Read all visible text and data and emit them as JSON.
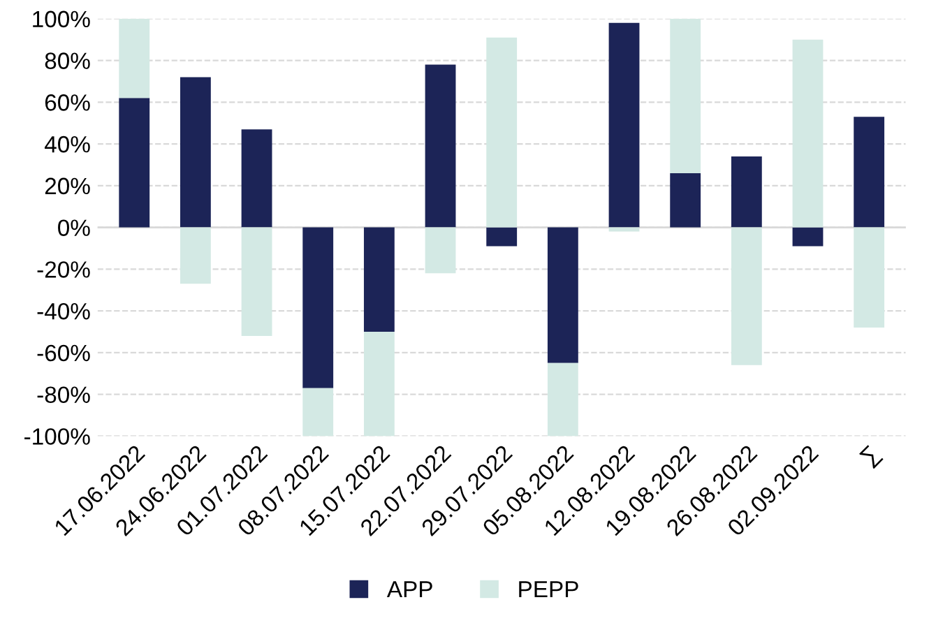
{
  "chart_data": {
    "type": "bar",
    "stacked": true,
    "categories": [
      "17.06.2022",
      "24.06.2022",
      "01.07.2022",
      "08.07.2022",
      "15.07.2022",
      "22.07.2022",
      "29.07.2022",
      "05.08.2022",
      "12.08.2022",
      "19.08.2022",
      "26.08.2022",
      "02.09.2022",
      "∑"
    ],
    "series": [
      {
        "name": "APP",
        "color": "#1c2457",
        "values": [
          62,
          72,
          47,
          -77,
          -50,
          78,
          -9,
          -65,
          98,
          26,
          34,
          -9,
          53
        ]
      },
      {
        "name": "PEPP",
        "color": "#d3e9e4",
        "values": [
          38,
          -27,
          -52,
          -23,
          -50,
          -22,
          91,
          -35,
          -2,
          74,
          -66,
          90,
          -48
        ]
      }
    ],
    "ylim": [
      -100,
      100
    ],
    "yticks": [
      {
        "value": -100,
        "label": "-100%"
      },
      {
        "value": -80,
        "label": "-80%"
      },
      {
        "value": -60,
        "label": "-60%"
      },
      {
        "value": -40,
        "label": "-40%"
      },
      {
        "value": -20,
        "label": "-20%"
      },
      {
        "value": 0,
        "label": "0%"
      },
      {
        "value": 20,
        "label": "20%"
      },
      {
        "value": 40,
        "label": "40%"
      },
      {
        "value": 60,
        "label": "60%"
      },
      {
        "value": 80,
        "label": "80%"
      },
      {
        "value": 100,
        "label": "100%"
      }
    ],
    "grid": "y",
    "legend": "bottom"
  }
}
